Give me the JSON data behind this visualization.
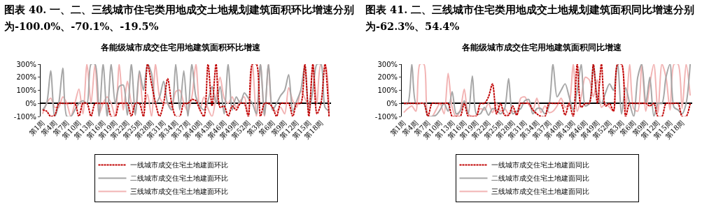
{
  "chart_data": [
    {
      "type": "line",
      "title": "图表 40. 一、二、三线城市住宅类用地成交土地规划建筑面积环比增速分别为-100.0%、-70.1%、-19.5%",
      "subtitle": "各能级城市成交住宅用地建筑面积环比增速",
      "categories": [
        "第1周",
        null,
        null,
        "第4周",
        null,
        null,
        "第7周",
        null,
        null,
        "第10周",
        null,
        null,
        "第13周",
        null,
        null,
        "第16周",
        null,
        null,
        "第19周",
        null,
        null,
        "第22周",
        null,
        null,
        "第25周",
        null,
        null,
        "第28周",
        null,
        null,
        "第31周",
        null,
        null,
        "第34周",
        null,
        null,
        "第37周",
        null,
        null,
        "第40周",
        null,
        null,
        "第43周",
        null,
        null,
        "第46周",
        null,
        null,
        "第49周",
        null,
        null,
        "第52周",
        null,
        null,
        "第3周",
        null,
        null,
        "第6周",
        null,
        null,
        "第9周",
        null,
        null,
        "第12周",
        null,
        null,
        "第15周",
        null,
        null,
        "第18周",
        null,
        null
      ],
      "series": [
        {
          "name": "一线城市成交住宅土地建面环比",
          "color": "#c00000",
          "line_style": "dashed",
          "values": [
            -50,
            -60,
            -100,
            -90,
            0,
            0,
            0,
            0,
            0,
            -100,
            0,
            0,
            -100,
            0,
            0,
            0,
            0,
            -100,
            -100,
            0,
            0,
            0,
            -100,
            0,
            0,
            -100,
            300,
            150,
            0,
            -100,
            0,
            190,
            0,
            -100,
            -100,
            0,
            0,
            30,
            20,
            -50,
            -100,
            300,
            -20,
            300,
            -30,
            -20,
            -100,
            -20,
            -50,
            0,
            0,
            -100,
            300,
            300,
            -100,
            0,
            0,
            -30,
            -100,
            0,
            0,
            0,
            -100,
            0,
            0,
            300,
            -100,
            300,
            -80,
            0,
            300,
            -100
          ]
        },
        {
          "name": "二线城市成交住宅土地建面环比",
          "color": "#a6a6a6",
          "line_style": "solid",
          "values": [
            -50,
            0,
            250,
            -100,
            0,
            270,
            -100,
            -100,
            -50,
            0,
            20,
            0,
            300,
            300,
            -100,
            300,
            -100,
            300,
            0,
            130,
            140,
            -90,
            300,
            -90,
            250,
            100,
            300,
            230,
            0,
            50,
            170,
            0,
            -50,
            300,
            -50,
            250,
            -100,
            300,
            50,
            -20,
            -50,
            20,
            130,
            0,
            130,
            -80,
            300,
            -50,
            50,
            0,
            80,
            40,
            0,
            -80,
            300,
            -90,
            300,
            -50,
            0,
            60,
            100,
            220,
            -60,
            20,
            100,
            290,
            -60,
            100,
            300,
            300,
            -30,
            -60
          ]
        },
        {
          "name": "三线城市成交住宅土地建面环比",
          "color": "#f2b3b3",
          "line_style": "solid",
          "values": [
            -80,
            0,
            40,
            -30,
            -30,
            50,
            0,
            -100,
            0,
            110,
            -80,
            300,
            0,
            300,
            -80,
            0,
            50,
            0,
            -100,
            300,
            -50,
            170,
            0,
            -80,
            240,
            -40,
            70,
            -100,
            300,
            50,
            0,
            0,
            -30,
            90,
            100,
            0,
            -60,
            50,
            300,
            -50,
            50,
            -40,
            -100,
            50,
            200,
            40,
            0,
            50,
            -30,
            20,
            50,
            -80,
            300,
            -100,
            300,
            -100,
            300,
            -50,
            -60,
            -30,
            -80,
            120,
            20,
            -30,
            100,
            40,
            -20,
            300,
            0,
            300,
            300,
            -80
          ]
        }
      ],
      "ylim": [
        -100,
        300
      ],
      "yticks": [
        {
          "value": -100,
          "label": "-100%"
        },
        {
          "value": 0,
          "label": "0%"
        },
        {
          "value": 100,
          "label": "100%"
        },
        {
          "value": 200,
          "label": "200%"
        },
        {
          "value": 300,
          "label": "300%"
        }
      ],
      "legend": "bottom"
    },
    {
      "type": "line",
      "title": "图表 41. 二、三线城市住宅类用地成交土地规划建筑面积同比增速分别为-62.3%、54.4%",
      "subtitle": "各能级城市成交住宅用地建筑面积同比增速",
      "categories": [
        "第1周",
        null,
        null,
        "第4周",
        null,
        null,
        "第7周",
        null,
        null,
        "第10周",
        null,
        null,
        "第13周",
        null,
        null,
        "第16周",
        null,
        null,
        "第19周",
        null,
        null,
        "第22周",
        null,
        null,
        "第25周",
        null,
        null,
        "第28周",
        null,
        null,
        "第31周",
        null,
        null,
        "第34周",
        null,
        null,
        "第37周",
        null,
        null,
        "第40周",
        null,
        null,
        "第43周",
        null,
        null,
        "第46周",
        null,
        null,
        "第49周",
        null,
        null,
        "第52周",
        null,
        null,
        "第3周",
        null,
        null,
        "第6周",
        null,
        null,
        "第9周",
        null,
        null,
        "第12周",
        null,
        null,
        "第15周",
        null,
        null,
        "第18周",
        null,
        null
      ],
      "series": [
        {
          "name": "一线城市成交住宅土地建面同比",
          "color": "#c00000",
          "line_style": "dashed",
          "values": [
            0,
            0,
            0,
            0,
            0,
            0,
            -100,
            0,
            0,
            0,
            0,
            0,
            -100,
            -100,
            -100,
            0,
            -100,
            -100,
            -100,
            0,
            0,
            50,
            150,
            -80,
            0,
            -90,
            -90,
            -20,
            -90,
            0,
            0,
            0,
            -50,
            -80,
            -100,
            -100,
            0,
            0,
            0,
            0,
            -90,
            0,
            -100,
            300,
            -30,
            0,
            0,
            300,
            0,
            300,
            -20,
            0,
            -60,
            300,
            300,
            -100,
            0,
            0,
            0,
            0,
            0,
            -20,
            0,
            -100,
            -100,
            0,
            0,
            0,
            0,
            -100,
            -100,
            0
          ]
        },
        {
          "name": "二线城市成交住宅土地建面同比",
          "color": "#a6a6a6",
          "line_style": "solid",
          "values": [
            0,
            0,
            300,
            0,
            0,
            0,
            -100,
            -100,
            -90,
            -50,
            0,
            -60,
            90,
            -80,
            -60,
            20,
            -80,
            210,
            -80,
            -80,
            -30,
            -90,
            -40,
            -50,
            -80,
            -40,
            190,
            -80,
            -60,
            -40,
            20,
            30,
            -80,
            -40,
            -40,
            -80,
            -20,
            300,
            50,
            100,
            150,
            50,
            -50,
            100,
            300,
            -20,
            0,
            300,
            50,
            0,
            80,
            150,
            100,
            300,
            -80,
            120,
            0,
            -100,
            200,
            300,
            0,
            200,
            -100,
            0,
            0,
            200,
            300,
            -30,
            -50,
            -80,
            0,
            300
          ]
        },
        {
          "name": "三线城市成交住宅土地建面同比",
          "color": "#f2b3b3",
          "line_style": "solid",
          "values": [
            -70,
            -40,
            -20,
            -60,
            300,
            300,
            -90,
            -100,
            -50,
            0,
            -80,
            230,
            -30,
            -100,
            -50,
            110,
            -80,
            -100,
            -90,
            -40,
            -50,
            0,
            -70,
            0,
            -60,
            -40,
            -80,
            -60,
            -70,
            40,
            50,
            -10,
            -50,
            40,
            -70,
            -20,
            -70,
            -60,
            -20,
            40,
            -30,
            0,
            300,
            -60,
            50,
            200,
            180,
            50,
            180,
            -30,
            0,
            -30,
            -60,
            300,
            300,
            -60,
            300,
            -40,
            -60,
            300,
            -60,
            150,
            300,
            -70,
            300,
            200,
            -50,
            300,
            300,
            -40,
            300,
            60
          ]
        }
      ],
      "ylim": [
        -100,
        300
      ],
      "yticks": [
        {
          "value": -100,
          "label": "-100%"
        },
        {
          "value": 0,
          "label": "0%"
        },
        {
          "value": 100,
          "label": "100%"
        },
        {
          "value": 200,
          "label": "200%"
        },
        {
          "value": 300,
          "label": "300%"
        }
      ],
      "legend": "bottom"
    }
  ]
}
